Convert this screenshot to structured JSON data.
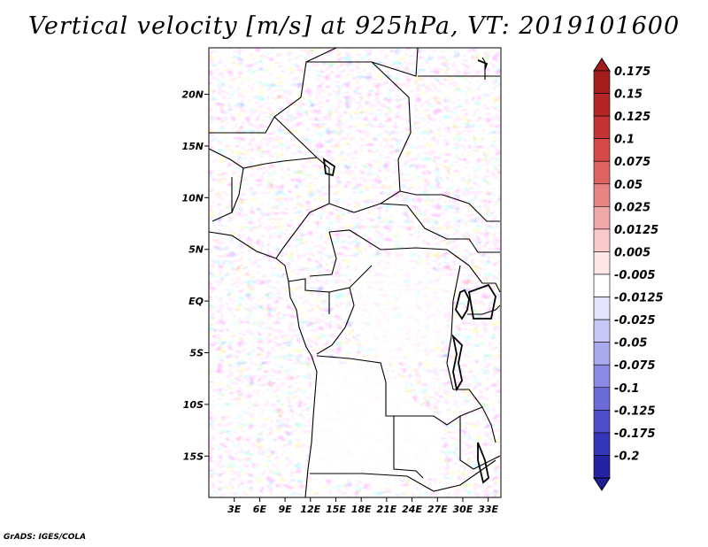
{
  "title": "Vertical velocity [m/s] at 925hPa, VT: 2019101600",
  "credit": "GrADS: IGES/COLA",
  "map": {
    "lon_range": [
      0,
      34.5
    ],
    "lat_range": [
      -19,
      24.5
    ],
    "lat_ticks": [
      {
        "value": 20,
        "label": "20N"
      },
      {
        "value": 15,
        "label": "15N"
      },
      {
        "value": 10,
        "label": "10N"
      },
      {
        "value": 5,
        "label": "5N"
      },
      {
        "value": 0,
        "label": "EQ"
      },
      {
        "value": -5,
        "label": "5S"
      },
      {
        "value": -10,
        "label": "10S"
      },
      {
        "value": -15,
        "label": "15S"
      }
    ],
    "lon_ticks": [
      {
        "value": 3,
        "label": "3E"
      },
      {
        "value": 6,
        "label": "6E"
      },
      {
        "value": 9,
        "label": "9E"
      },
      {
        "value": 12,
        "label": "12E"
      },
      {
        "value": 15,
        "label": "15E"
      },
      {
        "value": 18,
        "label": "18E"
      },
      {
        "value": 21,
        "label": "21E"
      },
      {
        "value": 24,
        "label": "24E"
      },
      {
        "value": 27,
        "label": "27E"
      },
      {
        "value": 30,
        "label": "30E"
      },
      {
        "value": 33,
        "label": "33E"
      }
    ]
  },
  "colorbar": {
    "levels": [
      {
        "label": "0.175",
        "color": "#a31d1d"
      },
      {
        "label": "0.15",
        "color": "#b52525"
      },
      {
        "label": "0.125",
        "color": "#c43434"
      },
      {
        "label": "0.1",
        "color": "#d44848"
      },
      {
        "label": "0.075",
        "color": "#de6464"
      },
      {
        "label": "0.05",
        "color": "#e88484"
      },
      {
        "label": "0.025",
        "color": "#f1a8a8"
      },
      {
        "label": "0.0125",
        "color": "#f8caca"
      },
      {
        "label": "0.005",
        "color": "#fde6e6"
      },
      {
        "label": "-0.005",
        "color": "#ffffff"
      },
      {
        "label": "-0.0125",
        "color": "#e4e4fb"
      },
      {
        "label": "-0.025",
        "color": "#c8c8f6"
      },
      {
        "label": "-0.05",
        "color": "#a9a9ee"
      },
      {
        "label": "-0.075",
        "color": "#8a8ae4"
      },
      {
        "label": "-0.1",
        "color": "#6b6bd8"
      },
      {
        "label": "-0.125",
        "color": "#4f4fca"
      },
      {
        "label": "-0.175",
        "color": "#3535b8"
      },
      {
        "label": "-0.2",
        "color": "#2424a3"
      }
    ],
    "top_triangle_color": "#a31d1d",
    "bottom_triangle_color": "#1e1e96"
  }
}
